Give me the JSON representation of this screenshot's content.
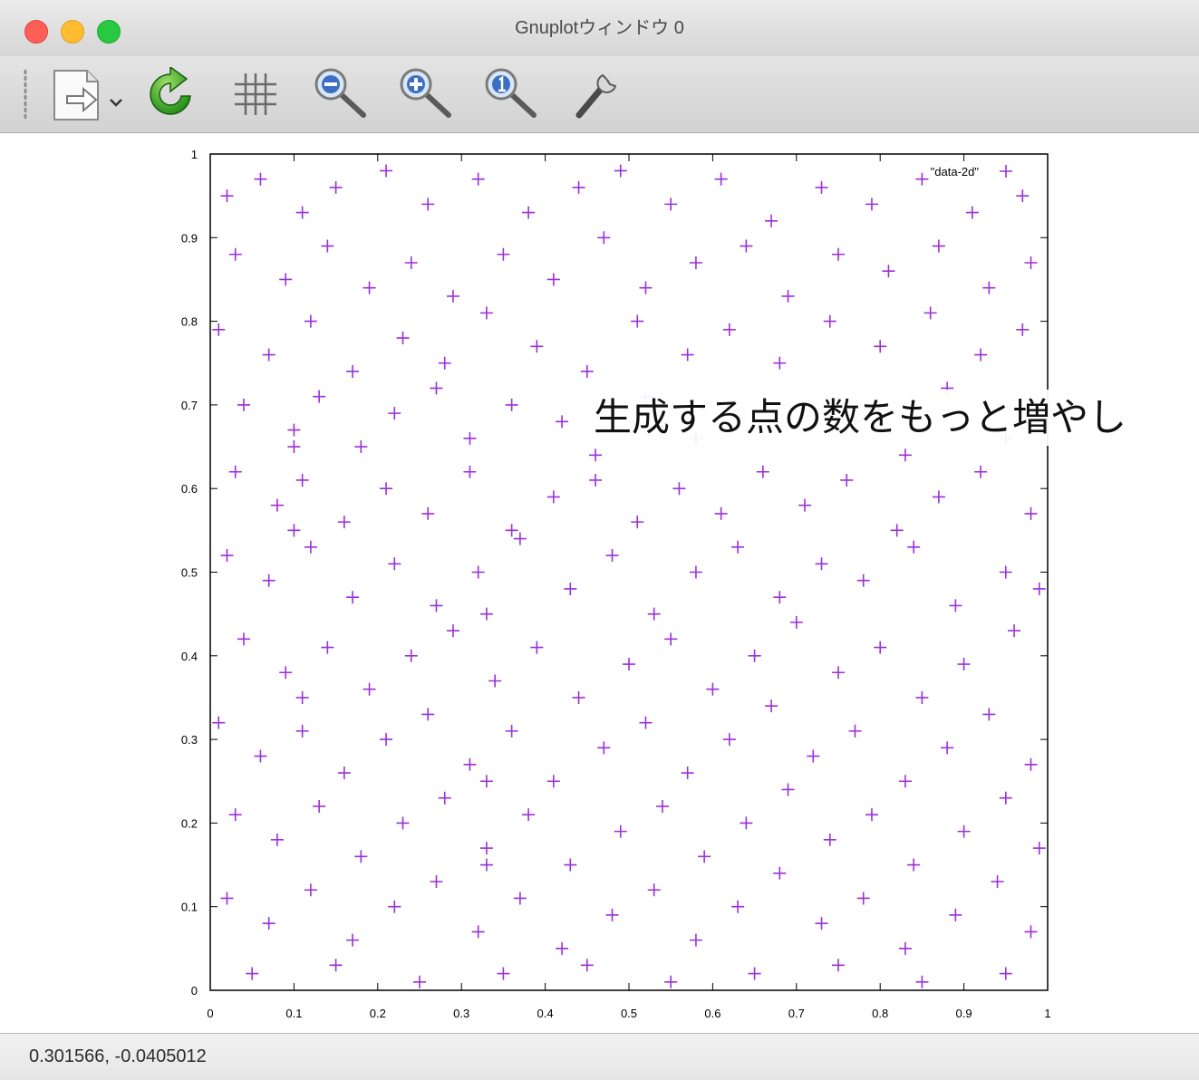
{
  "window": {
    "title": "Gnuplotウィンドウ 0",
    "traffic_lights": {
      "close": "#ff5f57",
      "minimize": "#febc2e",
      "maximize": "#28c840"
    }
  },
  "toolbar": {
    "items": [
      {
        "name": "export-menu",
        "icon": "export-icon"
      },
      {
        "name": "replot",
        "icon": "refresh-icon"
      },
      {
        "name": "toggle-grid",
        "icon": "grid-icon"
      },
      {
        "name": "zoom-out",
        "icon": "zoom-out-icon"
      },
      {
        "name": "zoom-in",
        "icon": "zoom-in-icon"
      },
      {
        "name": "zoom-reset",
        "icon": "zoom-reset-icon"
      },
      {
        "name": "preferences",
        "icon": "wrench-icon"
      }
    ]
  },
  "overlay_caption": "生成する点の数をもっと増やし",
  "status": {
    "coordinates": "0.301566, -0.0405012"
  },
  "chart_data": {
    "type": "scatter",
    "marker": "+",
    "color": "#9b30d9",
    "xlim": [
      0,
      1
    ],
    "ylim": [
      0,
      1
    ],
    "x_ticks": [
      "0",
      "0.1",
      "0.2",
      "0.3",
      "0.4",
      "0.5",
      "0.6",
      "0.7",
      "0.8",
      "0.9",
      "1"
    ],
    "y_ticks": [
      "0",
      "0.1",
      "0.2",
      "0.3",
      "0.4",
      "0.5",
      "0.6",
      "0.7",
      "0.8",
      "0.9",
      "1"
    ],
    "legend_position": "top-right",
    "series": [
      {
        "name": "\"data-2d\"",
        "points": [
          [
            0.02,
            0.95
          ],
          [
            0.06,
            0.97
          ],
          [
            0.11,
            0.93
          ],
          [
            0.15,
            0.96
          ],
          [
            0.21,
            0.98
          ],
          [
            0.26,
            0.94
          ],
          [
            0.32,
            0.97
          ],
          [
            0.38,
            0.93
          ],
          [
            0.44,
            0.96
          ],
          [
            0.49,
            0.98
          ],
          [
            0.55,
            0.94
          ],
          [
            0.61,
            0.97
          ],
          [
            0.67,
            0.92
          ],
          [
            0.73,
            0.96
          ],
          [
            0.79,
            0.94
          ],
          [
            0.85,
            0.97
          ],
          [
            0.91,
            0.93
          ],
          [
            0.97,
            0.95
          ],
          [
            0.03,
            0.88
          ],
          [
            0.09,
            0.85
          ],
          [
            0.14,
            0.89
          ],
          [
            0.19,
            0.84
          ],
          [
            0.24,
            0.87
          ],
          [
            0.29,
            0.83
          ],
          [
            0.35,
            0.88
          ],
          [
            0.41,
            0.85
          ],
          [
            0.47,
            0.9
          ],
          [
            0.52,
            0.84
          ],
          [
            0.58,
            0.87
          ],
          [
            0.64,
            0.89
          ],
          [
            0.69,
            0.83
          ],
          [
            0.75,
            0.88
          ],
          [
            0.81,
            0.86
          ],
          [
            0.87,
            0.89
          ],
          [
            0.93,
            0.84
          ],
          [
            0.98,
            0.87
          ],
          [
            0.01,
            0.79
          ],
          [
            0.07,
            0.76
          ],
          [
            0.12,
            0.8
          ],
          [
            0.17,
            0.74
          ],
          [
            0.23,
            0.78
          ],
          [
            0.28,
            0.75
          ],
          [
            0.33,
            0.81
          ],
          [
            0.39,
            0.77
          ],
          [
            0.45,
            0.74
          ],
          [
            0.51,
            0.8
          ],
          [
            0.57,
            0.76
          ],
          [
            0.62,
            0.79
          ],
          [
            0.68,
            0.75
          ],
          [
            0.74,
            0.8
          ],
          [
            0.8,
            0.77
          ],
          [
            0.86,
            0.81
          ],
          [
            0.92,
            0.76
          ],
          [
            0.97,
            0.79
          ],
          [
            0.04,
            0.7
          ],
          [
            0.1,
            0.67
          ],
          [
            0.13,
            0.71
          ],
          [
            0.18,
            0.65
          ],
          [
            0.22,
            0.69
          ],
          [
            0.27,
            0.72
          ],
          [
            0.31,
            0.66
          ],
          [
            0.36,
            0.7
          ],
          [
            0.42,
            0.68
          ],
          [
            0.46,
            0.64
          ],
          [
            0.03,
            0.62
          ],
          [
            0.08,
            0.58
          ],
          [
            0.11,
            0.61
          ],
          [
            0.16,
            0.56
          ],
          [
            0.21,
            0.6
          ],
          [
            0.26,
            0.57
          ],
          [
            0.31,
            0.62
          ],
          [
            0.36,
            0.55
          ],
          [
            0.41,
            0.59
          ],
          [
            0.46,
            0.61
          ],
          [
            0.51,
            0.56
          ],
          [
            0.56,
            0.6
          ],
          [
            0.61,
            0.57
          ],
          [
            0.66,
            0.62
          ],
          [
            0.71,
            0.58
          ],
          [
            0.76,
            0.61
          ],
          [
            0.82,
            0.55
          ],
          [
            0.87,
            0.59
          ],
          [
            0.92,
            0.62
          ],
          [
            0.98,
            0.57
          ],
          [
            0.02,
            0.52
          ],
          [
            0.07,
            0.49
          ],
          [
            0.12,
            0.53
          ],
          [
            0.17,
            0.47
          ],
          [
            0.22,
            0.51
          ],
          [
            0.27,
            0.46
          ],
          [
            0.32,
            0.5
          ],
          [
            0.37,
            0.54
          ],
          [
            0.43,
            0.48
          ],
          [
            0.48,
            0.52
          ],
          [
            0.53,
            0.45
          ],
          [
            0.58,
            0.5
          ],
          [
            0.63,
            0.53
          ],
          [
            0.68,
            0.47
          ],
          [
            0.73,
            0.51
          ],
          [
            0.78,
            0.49
          ],
          [
            0.84,
            0.53
          ],
          [
            0.89,
            0.46
          ],
          [
            0.95,
            0.5
          ],
          [
            0.99,
            0.48
          ],
          [
            0.04,
            0.42
          ],
          [
            0.09,
            0.38
          ],
          [
            0.14,
            0.41
          ],
          [
            0.19,
            0.36
          ],
          [
            0.24,
            0.4
          ],
          [
            0.29,
            0.43
          ],
          [
            0.34,
            0.37
          ],
          [
            0.39,
            0.41
          ],
          [
            0.44,
            0.35
          ],
          [
            0.5,
            0.39
          ],
          [
            0.55,
            0.42
          ],
          [
            0.6,
            0.36
          ],
          [
            0.65,
            0.4
          ],
          [
            0.7,
            0.44
          ],
          [
            0.75,
            0.38
          ],
          [
            0.8,
            0.41
          ],
          [
            0.85,
            0.35
          ],
          [
            0.9,
            0.39
          ],
          [
            0.96,
            0.43
          ],
          [
            0.01,
            0.32
          ],
          [
            0.06,
            0.28
          ],
          [
            0.11,
            0.31
          ],
          [
            0.16,
            0.26
          ],
          [
            0.21,
            0.3
          ],
          [
            0.26,
            0.33
          ],
          [
            0.31,
            0.27
          ],
          [
            0.36,
            0.31
          ],
          [
            0.41,
            0.25
          ],
          [
            0.47,
            0.29
          ],
          [
            0.52,
            0.32
          ],
          [
            0.57,
            0.26
          ],
          [
            0.62,
            0.3
          ],
          [
            0.67,
            0.34
          ],
          [
            0.72,
            0.28
          ],
          [
            0.77,
            0.31
          ],
          [
            0.83,
            0.25
          ],
          [
            0.88,
            0.29
          ],
          [
            0.93,
            0.33
          ],
          [
            0.98,
            0.27
          ],
          [
            0.03,
            0.21
          ],
          [
            0.08,
            0.18
          ],
          [
            0.13,
            0.22
          ],
          [
            0.18,
            0.16
          ],
          [
            0.23,
            0.2
          ],
          [
            0.28,
            0.23
          ],
          [
            0.33,
            0.17
          ],
          [
            0.38,
            0.21
          ],
          [
            0.43,
            0.15
          ],
          [
            0.49,
            0.19
          ],
          [
            0.54,
            0.22
          ],
          [
            0.59,
            0.16
          ],
          [
            0.64,
            0.2
          ],
          [
            0.69,
            0.24
          ],
          [
            0.74,
            0.18
          ],
          [
            0.79,
            0.21
          ],
          [
            0.84,
            0.15
          ],
          [
            0.9,
            0.19
          ],
          [
            0.95,
            0.23
          ],
          [
            0.99,
            0.17
          ],
          [
            0.02,
            0.11
          ],
          [
            0.07,
            0.08
          ],
          [
            0.12,
            0.12
          ],
          [
            0.17,
            0.06
          ],
          [
            0.22,
            0.1
          ],
          [
            0.27,
            0.13
          ],
          [
            0.32,
            0.07
          ],
          [
            0.37,
            0.11
          ],
          [
            0.42,
            0.05
          ],
          [
            0.48,
            0.09
          ],
          [
            0.53,
            0.12
          ],
          [
            0.58,
            0.06
          ],
          [
            0.63,
            0.1
          ],
          [
            0.68,
            0.14
          ],
          [
            0.73,
            0.08
          ],
          [
            0.78,
            0.11
          ],
          [
            0.83,
            0.05
          ],
          [
            0.89,
            0.09
          ],
          [
            0.94,
            0.13
          ],
          [
            0.98,
            0.07
          ],
          [
            0.05,
            0.02
          ],
          [
            0.15,
            0.03
          ],
          [
            0.25,
            0.01
          ],
          [
            0.35,
            0.02
          ],
          [
            0.45,
            0.03
          ],
          [
            0.55,
            0.01
          ],
          [
            0.65,
            0.02
          ],
          [
            0.75,
            0.03
          ],
          [
            0.85,
            0.01
          ],
          [
            0.95,
            0.02
          ],
          [
            0.1,
            0.65
          ],
          [
            0.1,
            0.55
          ],
          [
            0.33,
            0.45
          ],
          [
            0.33,
            0.25
          ],
          [
            0.33,
            0.15
          ],
          [
            0.11,
            0.35
          ],
          [
            0.58,
            0.66
          ],
          [
            0.52,
            0.71
          ],
          [
            0.77,
            0.68
          ],
          [
            0.88,
            0.72
          ],
          [
            0.95,
            0.66
          ],
          [
            0.83,
            0.64
          ]
        ]
      }
    ]
  }
}
